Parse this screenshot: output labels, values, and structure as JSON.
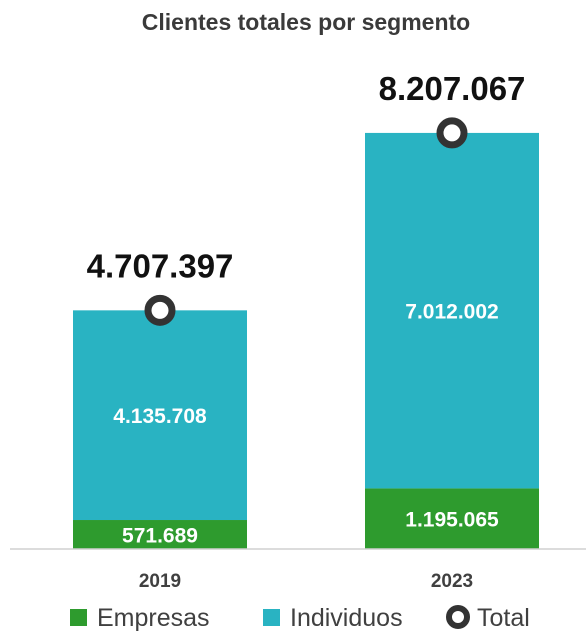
{
  "chart_data": {
    "type": "bar",
    "stacked": true,
    "title": "Clientes totales por segmento",
    "categories": [
      "2019",
      "2023"
    ],
    "series": [
      {
        "name": "Empresas",
        "values": [
          571689,
          1195065
        ],
        "labels": [
          "571.689",
          "1.195.065"
        ],
        "color": "#2e9b2e"
      },
      {
        "name": "Individuos",
        "values": [
          4135708,
          7012002
        ],
        "labels": [
          "4.135.708",
          "7.012.002"
        ],
        "color": "#29b3c2"
      }
    ],
    "total": {
      "name": "Total",
      "values": [
        4707397,
        8207067
      ],
      "labels": [
        "4.707.397",
        "8.207.067"
      ],
      "marker_color": "#333333"
    },
    "ylim": [
      0,
      8600000
    ],
    "grid": false,
    "legend_position": "bottom"
  }
}
